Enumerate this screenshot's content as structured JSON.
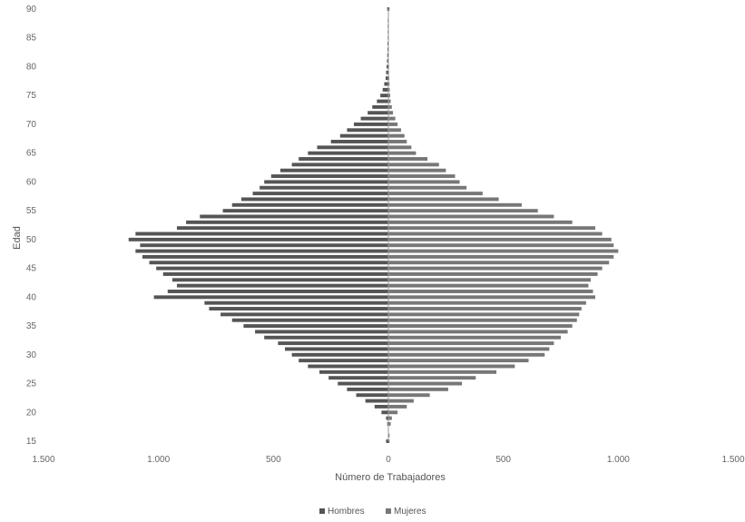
{
  "chart_data": {
    "type": "bar",
    "orientation": "horizontal",
    "subtype": "population-pyramid",
    "title": "",
    "xlabel": "Número de Trabajadores",
    "ylabel": "Edad",
    "xlim": [
      -1500,
      1500
    ],
    "ylim": [
      15,
      90
    ],
    "x_tick_labels": [
      "1.500",
      "1.000",
      "500",
      "0",
      "500",
      "1.000",
      "1.500"
    ],
    "x_tick_values": [
      -1500,
      -1000,
      -500,
      0,
      500,
      1000,
      1500
    ],
    "y_tick_values": [
      15,
      20,
      25,
      30,
      35,
      40,
      45,
      50,
      55,
      60,
      65,
      70,
      75,
      80,
      85,
      90
    ],
    "legend_position": "bottom",
    "grid": false,
    "ages": [
      15,
      16,
      17,
      18,
      19,
      20,
      21,
      22,
      23,
      24,
      25,
      26,
      27,
      28,
      29,
      30,
      31,
      32,
      33,
      34,
      35,
      36,
      37,
      38,
      39,
      40,
      41,
      42,
      43,
      44,
      45,
      46,
      47,
      48,
      49,
      50,
      51,
      52,
      53,
      54,
      55,
      56,
      57,
      58,
      59,
      60,
      61,
      62,
      63,
      64,
      65,
      66,
      67,
      68,
      69,
      70,
      71,
      72,
      73,
      74,
      75,
      76,
      77,
      78,
      79,
      80,
      81,
      82,
      83,
      84,
      85,
      86,
      87,
      88,
      89,
      90
    ],
    "series": [
      {
        "name": "Hombres",
        "color": "#555555",
        "values": [
          10,
          0,
          0,
          5,
          10,
          30,
          60,
          100,
          140,
          180,
          220,
          260,
          300,
          350,
          390,
          420,
          450,
          480,
          540,
          580,
          630,
          680,
          730,
          780,
          800,
          1020,
          960,
          920,
          940,
          980,
          1010,
          1040,
          1070,
          1100,
          1080,
          1130,
          1100,
          920,
          880,
          820,
          720,
          680,
          640,
          590,
          560,
          540,
          510,
          470,
          420,
          390,
          350,
          310,
          250,
          210,
          180,
          150,
          120,
          90,
          70,
          50,
          35,
          25,
          18,
          12,
          10,
          8,
          6,
          5,
          4,
          4,
          3,
          3,
          3,
          3,
          0,
          5
        ]
      },
      {
        "name": "Mujeres",
        "color": "#777777",
        "values": [
          5,
          5,
          0,
          10,
          15,
          40,
          80,
          110,
          180,
          260,
          320,
          380,
          470,
          550,
          610,
          680,
          700,
          720,
          750,
          780,
          800,
          820,
          830,
          840,
          860,
          900,
          890,
          870,
          880,
          910,
          930,
          960,
          980,
          1000,
          980,
          970,
          930,
          900,
          800,
          720,
          650,
          580,
          480,
          410,
          340,
          310,
          290,
          250,
          220,
          170,
          120,
          100,
          80,
          70,
          55,
          40,
          30,
          20,
          15,
          10,
          8,
          6,
          5,
          4,
          3,
          3,
          2,
          2,
          2,
          2,
          2,
          2,
          2,
          2,
          0,
          5
        ]
      }
    ]
  }
}
